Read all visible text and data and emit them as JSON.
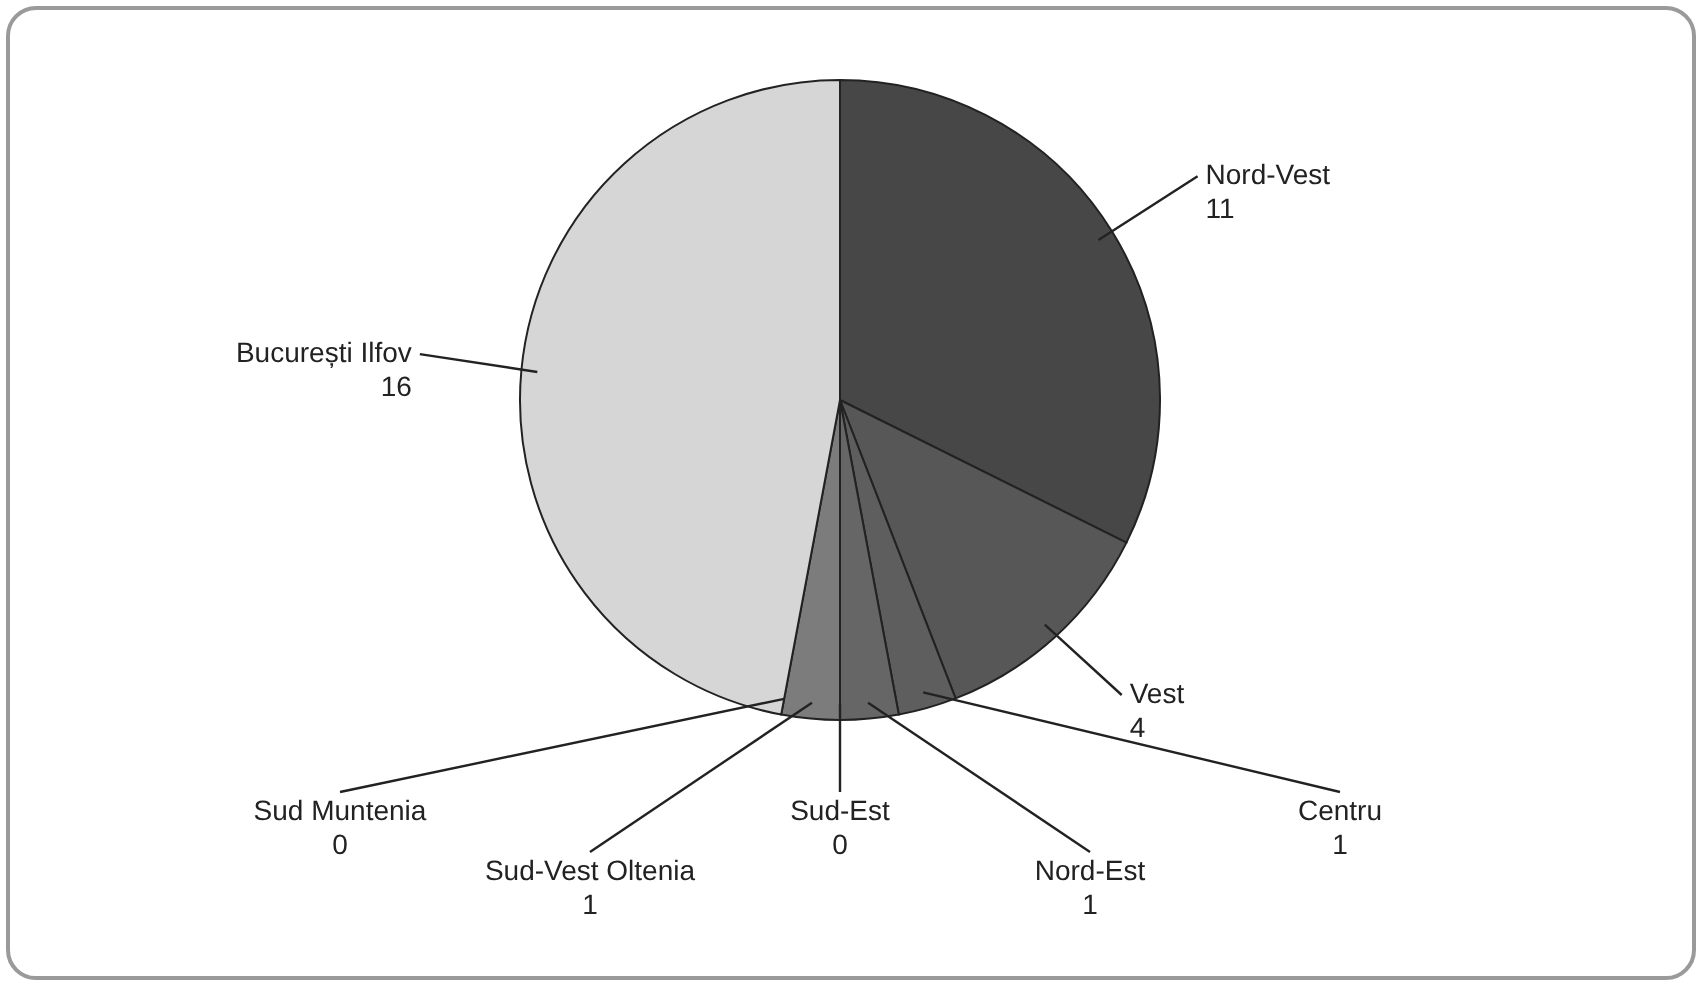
{
  "chart_data": {
    "type": "pie",
    "categories": [
      "Nord-Vest",
      "Vest",
      "Centru",
      "Nord-Est",
      "Sud-Est",
      "Sud-Vest Oltenia",
      "Sud Muntenia",
      "București Ilfov"
    ],
    "values": [
      11,
      4,
      1,
      1,
      0,
      1,
      0,
      16
    ],
    "value_labels": [
      "11",
      "4",
      "1",
      "1",
      "0",
      "1",
      "0",
      "16"
    ],
    "data_labels": true,
    "colors": [
      "#474747",
      "#575757",
      "#5e5e5e",
      "#666666",
      null,
      "#7c7c7c",
      null,
      "#d6d6d6"
    ]
  }
}
